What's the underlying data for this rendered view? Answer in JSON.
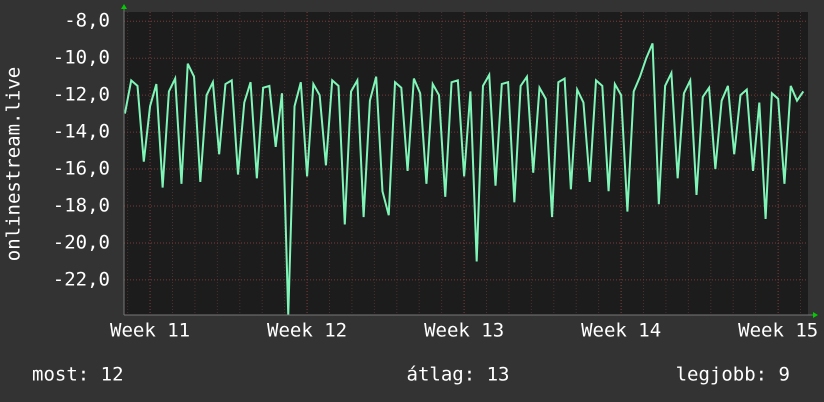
{
  "chart_data": {
    "type": "line",
    "ylabel": "onlinestream.live",
    "x": [
      10.84,
      10.88,
      10.92,
      10.96,
      11.0,
      11.04,
      11.08,
      11.12,
      11.16,
      11.2,
      11.24,
      11.28,
      11.32,
      11.36,
      11.4,
      11.44,
      11.48,
      11.52,
      11.56,
      11.6,
      11.64,
      11.68,
      11.72,
      11.76,
      11.8,
      11.84,
      11.88,
      11.92,
      11.96,
      12.0,
      12.04,
      12.08,
      12.12,
      12.16,
      12.2,
      12.24,
      12.28,
      12.32,
      12.36,
      12.4,
      12.44,
      12.48,
      12.52,
      12.56,
      12.6,
      12.64,
      12.68,
      12.72,
      12.76,
      12.8,
      12.84,
      12.88,
      12.92,
      12.96,
      13.0,
      13.04,
      13.08,
      13.12,
      13.16,
      13.2,
      13.24,
      13.28,
      13.32,
      13.36,
      13.4,
      13.44,
      13.48,
      13.52,
      13.56,
      13.6,
      13.64,
      13.68,
      13.72,
      13.76,
      13.8,
      13.84,
      13.88,
      13.92,
      13.96,
      14.0,
      14.04,
      14.08,
      14.12,
      14.16,
      14.2,
      14.24,
      14.28,
      14.32,
      14.36,
      14.4,
      14.44,
      14.48,
      14.52,
      14.56,
      14.6,
      14.64,
      14.68,
      14.72,
      14.76,
      14.8,
      14.84,
      14.88,
      14.92,
      14.96,
      15.0,
      15.04,
      15.08,
      15.12,
      15.16
    ],
    "series": [
      {
        "color": "#80f5b8",
        "values": [
          -13.0,
          -11.2,
          -11.5,
          -15.6,
          -12.6,
          -11.4,
          -17.0,
          -11.8,
          -11.1,
          -16.8,
          -10.3,
          -11.0,
          -16.7,
          -12.0,
          -11.3,
          -15.2,
          -11.4,
          -11.2,
          -16.3,
          -12.4,
          -11.3,
          -16.5,
          -11.6,
          -11.5,
          -14.8,
          -11.9,
          -23.9,
          -12.6,
          -11.3,
          -16.4,
          -11.4,
          -12.0,
          -15.8,
          -11.2,
          -11.5,
          -19.0,
          -11.8,
          -11.2,
          -18.6,
          -12.3,
          -11.0,
          -17.2,
          -18.5,
          -11.3,
          -11.6,
          -16.1,
          -11.1,
          -11.9,
          -16.8,
          -11.4,
          -12.0,
          -17.5,
          -11.3,
          -11.2,
          -16.4,
          -11.8,
          -21.0,
          -11.5,
          -10.9,
          -16.9,
          -11.4,
          -11.3,
          -17.8,
          -11.5,
          -11.0,
          -16.2,
          -11.6,
          -12.2,
          -18.6,
          -11.3,
          -11.1,
          -17.1,
          -11.7,
          -12.4,
          -16.7,
          -11.2,
          -11.5,
          -17.2,
          -11.4,
          -12.0,
          -18.3,
          -11.8,
          -11.0,
          -10.0,
          -9.2,
          -17.9,
          -11.5,
          -10.8,
          -16.5,
          -11.9,
          -11.2,
          -17.4,
          -12.1,
          -11.6,
          -16.0,
          -12.3,
          -11.5,
          -15.2,
          -12.0,
          -11.7,
          -16.1,
          -12.4,
          -18.7,
          -11.9,
          -12.2,
          -16.8,
          -11.5,
          -12.3,
          -11.8
        ]
      }
    ],
    "xlim": [
      10.834,
      15.19
    ],
    "xticks": [
      {
        "value": 11,
        "label": "Week 11"
      },
      {
        "value": 12,
        "label": "Week 12"
      },
      {
        "value": 13,
        "label": "Week 13"
      },
      {
        "value": 14,
        "label": "Week 14"
      },
      {
        "value": 15,
        "label": "Week 15"
      }
    ],
    "ylim": [
      -23.9,
      -7.5
    ],
    "yticks": [
      {
        "value": -8,
        "label": "-8,0"
      },
      {
        "value": -10,
        "label": "-10,0"
      },
      {
        "value": -12,
        "label": "-12,0"
      },
      {
        "value": -14,
        "label": "-14,0"
      },
      {
        "value": -16,
        "label": "-16,0"
      },
      {
        "value": -18,
        "label": "-18,0"
      },
      {
        "value": -20,
        "label": "-20,0"
      },
      {
        "value": -22,
        "label": "-22,0"
      }
    ],
    "grid": true,
    "footer": {
      "current": "most: 12",
      "average": "átlag: 13",
      "best": "legjobb: 9"
    }
  }
}
